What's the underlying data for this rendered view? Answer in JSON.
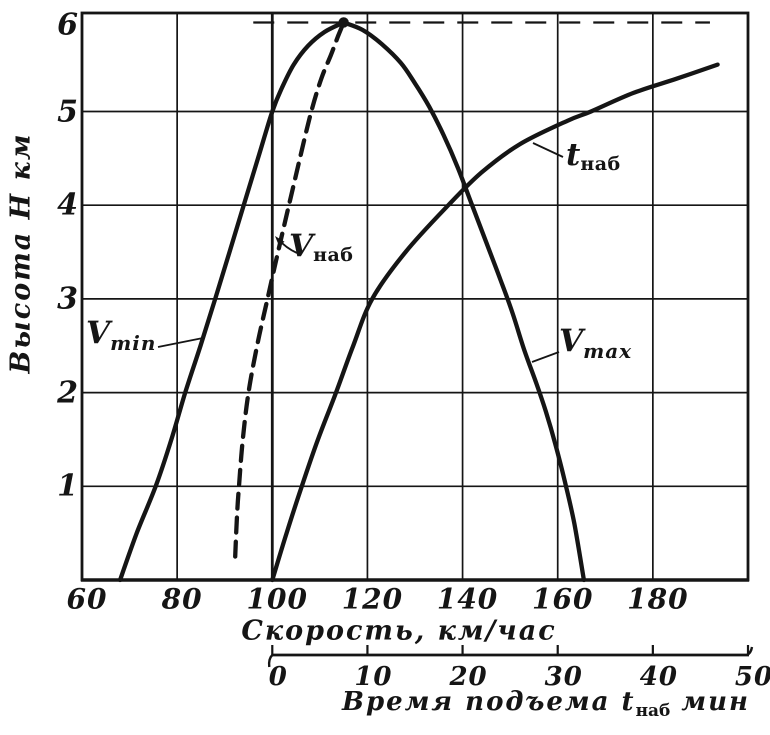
{
  "figure": {
    "background": "#ffffff",
    "ink": "#151515"
  },
  "chart_data": {
    "type": "line",
    "title": "",
    "grid": true,
    "legend_position": "none",
    "y_axis": {
      "label": "Высота Н км",
      "ticks": [
        1,
        2,
        3,
        4,
        5,
        6
      ],
      "range": [
        0,
        6.05
      ]
    },
    "x_axis_speed": {
      "label": "Скорость, км/час",
      "ticks": [
        60,
        80,
        100,
        120,
        140,
        160,
        180
      ],
      "gridlines": [
        80,
        100,
        120,
        140,
        160,
        180
      ],
      "bold_gridline": 100,
      "range": [
        60,
        200
      ]
    },
    "x_axis_time": {
      "label_pre": "Время подъема ",
      "label_sym": "t",
      "label_sub": "наб",
      "label_post": " мин",
      "ticks": [
        0,
        10,
        20,
        30,
        40,
        50
      ],
      "range": [
        0,
        50
      ],
      "note": "10 мин соответствует 20 км/час на общей шкале"
    },
    "series": [
      {
        "name": "Vmin",
        "axis": "speed",
        "style": "solid",
        "points": [
          [
            68,
            0
          ],
          [
            71.5,
            0.5
          ],
          [
            75.5,
            1
          ],
          [
            78.8,
            1.5
          ],
          [
            81.7,
            2
          ],
          [
            84.9,
            2.5
          ],
          [
            88,
            3
          ],
          [
            91,
            3.5
          ],
          [
            94,
            4
          ],
          [
            97,
            4.5
          ],
          [
            100,
            5
          ],
          [
            102,
            5.25
          ],
          [
            104.5,
            5.5
          ],
          [
            107.5,
            5.7
          ],
          [
            111,
            5.85
          ],
          [
            115,
            5.95
          ]
        ]
      },
      {
        "name": "Vнаб",
        "axis": "speed",
        "style": "dashed",
        "points": [
          [
            92.2,
            0.25
          ],
          [
            92.6,
            0.7
          ],
          [
            93,
            1
          ],
          [
            93.8,
            1.5
          ],
          [
            95,
            2
          ],
          [
            96.8,
            2.5
          ],
          [
            99,
            3
          ],
          [
            101.2,
            3.5
          ],
          [
            103.5,
            4
          ],
          [
            105.8,
            4.5
          ],
          [
            108.2,
            5
          ],
          [
            110.3,
            5.35
          ],
          [
            112.3,
            5.6
          ],
          [
            113.8,
            5.8
          ],
          [
            115,
            5.95
          ]
        ]
      },
      {
        "name": "Vmax",
        "axis": "speed",
        "style": "solid",
        "points": [
          [
            115,
            5.95
          ],
          [
            119,
            5.87
          ],
          [
            123,
            5.72
          ],
          [
            127,
            5.52
          ],
          [
            130,
            5.3
          ],
          [
            133,
            5.05
          ],
          [
            136,
            4.75
          ],
          [
            139,
            4.4
          ],
          [
            142,
            4
          ],
          [
            145,
            3.6
          ],
          [
            148,
            3.2
          ],
          [
            150.5,
            2.85
          ],
          [
            153,
            2.45
          ],
          [
            155.5,
            2.1
          ],
          [
            157.5,
            1.8
          ],
          [
            159.5,
            1.45
          ],
          [
            161.5,
            1.05
          ],
          [
            163.5,
            0.6
          ],
          [
            165.5,
            0
          ]
        ]
      },
      {
        "name": "tнаб",
        "axis": "time",
        "style": "solid",
        "points": [
          [
            0,
            0
          ],
          [
            1.5,
            0.5
          ],
          [
            3.1,
            1
          ],
          [
            4.8,
            1.5
          ],
          [
            6.7,
            2
          ],
          [
            8.5,
            2.5
          ],
          [
            10.5,
            3
          ],
          [
            14,
            3.5
          ],
          [
            18.5,
            4
          ],
          [
            22,
            4.35
          ],
          [
            26,
            4.65
          ],
          [
            31,
            4.9
          ],
          [
            33.5,
            5
          ],
          [
            38,
            5.2
          ],
          [
            42.5,
            5.35
          ],
          [
            46.8,
            5.5
          ]
        ]
      }
    ],
    "ceiling_point": {
      "speed": 115,
      "H": 5.95
    },
    "ceiling_line": {
      "H": 5.95,
      "speed_from": 96,
      "speed_to": 192,
      "style": "dashed"
    }
  },
  "labels": {
    "vmin": {
      "main": "V",
      "sub": "min"
    },
    "vnab": {
      "main": "V",
      "sub": "наб"
    },
    "tnab": {
      "main": "t",
      "sub": "наб"
    },
    "vmax": {
      "main": "V",
      "sub": "max"
    }
  }
}
